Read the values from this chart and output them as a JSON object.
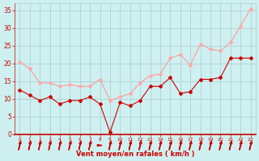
{
  "x": [
    0,
    1,
    2,
    3,
    4,
    5,
    6,
    7,
    8,
    9,
    10,
    11,
    12,
    13,
    14,
    15,
    16,
    17,
    18,
    19,
    20,
    21,
    22,
    23
  ],
  "vent_moyen": [
    12.5,
    11.0,
    9.5,
    10.5,
    8.5,
    9.5,
    9.5,
    10.5,
    8.5,
    0.5,
    9.0,
    8.0,
    9.5,
    13.5,
    13.5,
    16.0,
    11.5,
    12.0,
    15.5,
    15.5,
    16.0,
    21.5,
    21.5,
    21.5
  ],
  "rafales": [
    20.5,
    18.5,
    14.5,
    14.5,
    13.5,
    14.0,
    13.5,
    13.5,
    15.5,
    9.5,
    10.5,
    11.5,
    14.5,
    16.5,
    17.0,
    21.5,
    22.5,
    19.5,
    25.5,
    24.0,
    23.5,
    26.0,
    30.5,
    35.5
  ],
  "line_color_moyen": "#cc0000",
  "line_color_rafales": "#ff9999",
  "marker_color_moyen": "#cc0000",
  "marker_color_rafales": "#ffaaaa",
  "background_color": "#cff0f0",
  "grid_color": "#aacccc",
  "xlabel": "Vent moyen/en rafales ( km/h )",
  "xlabel_color": "#cc0000",
  "tick_color": "#cc0000",
  "ylim": [
    0,
    37
  ],
  "yticks": [
    0,
    5,
    10,
    15,
    20,
    25,
    30,
    35
  ],
  "xlim": [
    -0.5,
    23.5
  ],
  "arrow_color": "#cc0000",
  "arrow_angles_deg": [
    45,
    45,
    45,
    45,
    45,
    45,
    45,
    45,
    0,
    45,
    45,
    45,
    45,
    45,
    45,
    45,
    45,
    45,
    45,
    45,
    45,
    45,
    45,
    45
  ]
}
